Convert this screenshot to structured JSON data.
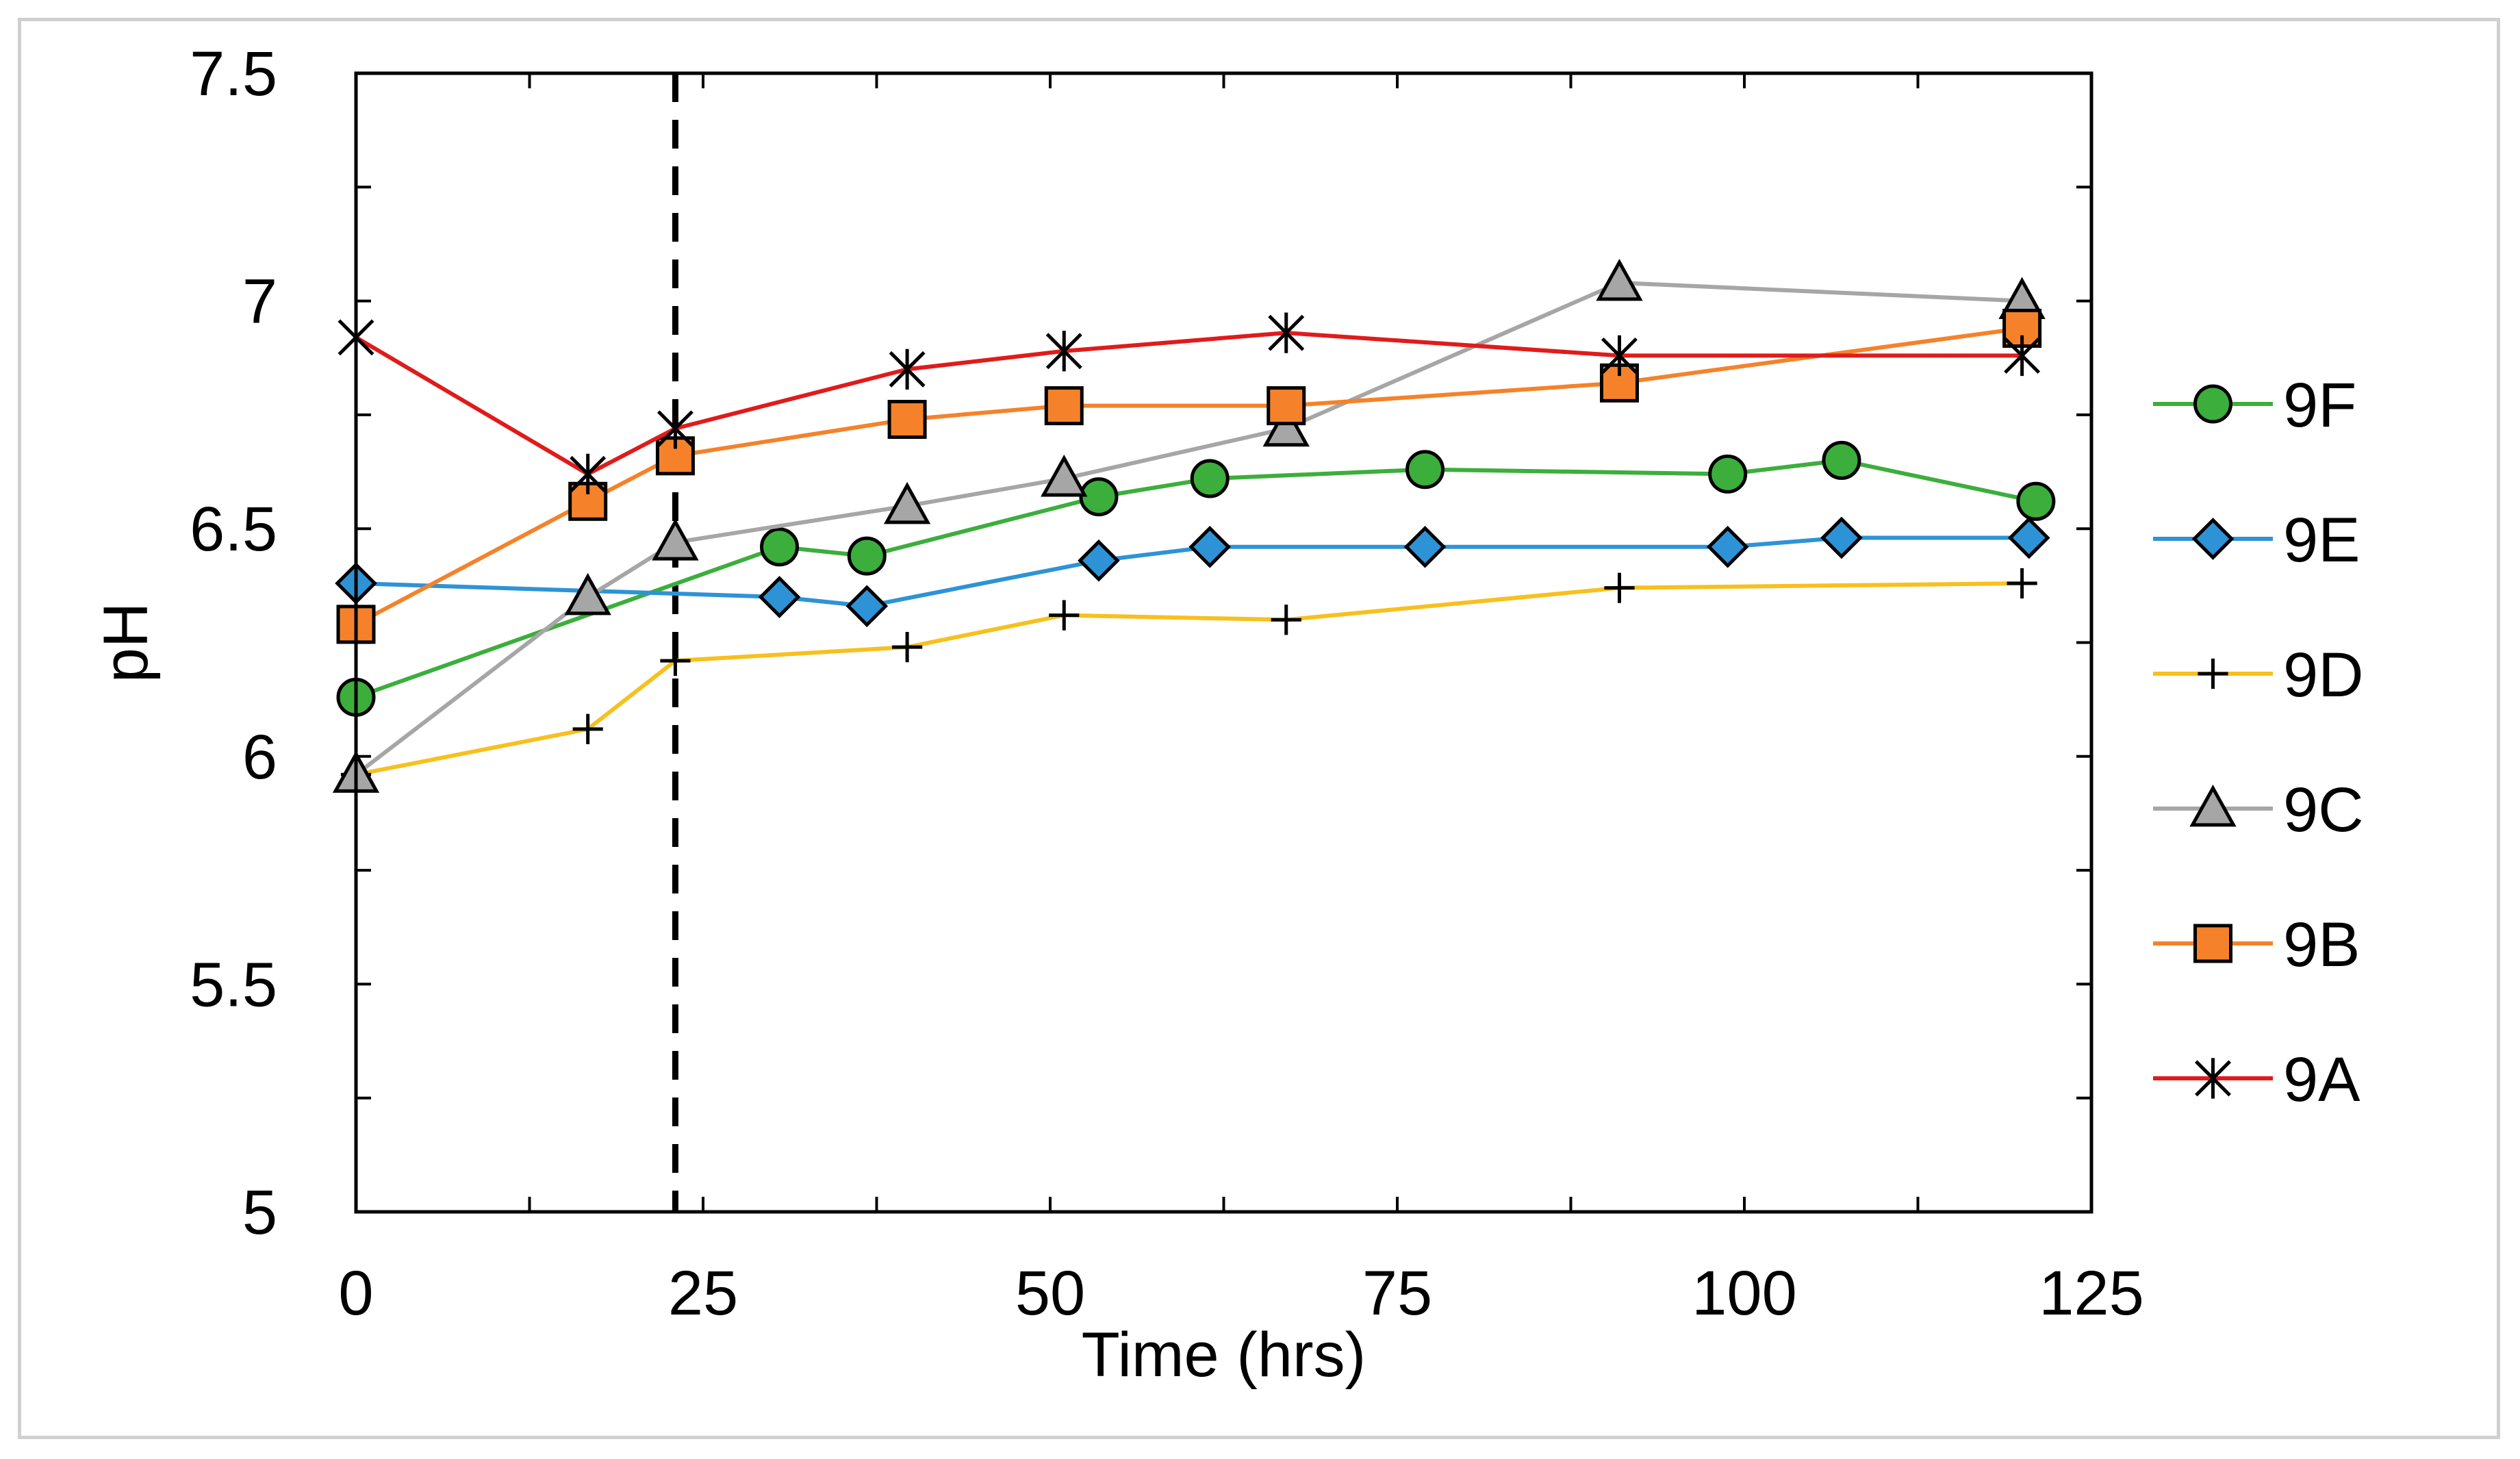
{
  "chart_data": {
    "type": "line",
    "title": "",
    "xlabel": "Time (hrs)",
    "ylabel": "pH",
    "xlim": [
      0,
      125
    ],
    "ylim": [
      5,
      7.5
    ],
    "xticks": [
      0,
      25,
      50,
      75,
      100,
      125
    ],
    "xtick_labels": [
      "0",
      "25",
      "50",
      "75",
      "100",
      "125"
    ],
    "yticks": [
      5,
      5.5,
      6,
      6.5,
      7,
      7.5
    ],
    "ytick_labels": [
      "5",
      "5.5",
      "6",
      "6.5",
      "7",
      "7.5"
    ],
    "vertical_reference_line": {
      "x": 23,
      "style": "dashed"
    },
    "legend_position": "right",
    "series": [
      {
        "name": "9F",
        "color": "#3cae3c",
        "marker": "circle",
        "x": [
          0,
          30.5,
          36.8,
          53.5,
          61.5,
          77,
          98.8,
          107,
          121
        ],
        "y": [
          6.13,
          6.46,
          6.44,
          6.57,
          6.61,
          6.63,
          6.62,
          6.65,
          6.56
        ]
      },
      {
        "name": "9E",
        "color": "#2e93d6",
        "marker": "diamond",
        "x": [
          0,
          30.5,
          36.8,
          53.5,
          61.5,
          77,
          98.8,
          107,
          120.5
        ],
        "y": [
          6.38,
          6.35,
          6.33,
          6.43,
          6.46,
          6.46,
          6.46,
          6.48,
          6.48
        ]
      },
      {
        "name": "9D",
        "color": "#f7c01e",
        "marker": "plus",
        "x": [
          0,
          16.7,
          23,
          39.7,
          51,
          67,
          91,
          120
        ],
        "y": [
          5.96,
          6.06,
          6.21,
          6.24,
          6.31,
          6.3,
          6.37,
          6.38
        ]
      },
      {
        "name": "9C",
        "color": "#a6a6a6",
        "marker": "triangle",
        "x": [
          0,
          16.7,
          23,
          39.7,
          51,
          67,
          91,
          120
        ],
        "y": [
          5.96,
          6.35,
          6.47,
          6.55,
          6.61,
          6.72,
          7.04,
          7.0
        ]
      },
      {
        "name": "9B",
        "color": "#f5822a",
        "marker": "square",
        "x": [
          0,
          16.7,
          23,
          39.7,
          51,
          67,
          91,
          120
        ],
        "y": [
          6.29,
          6.56,
          6.66,
          6.74,
          6.77,
          6.77,
          6.82,
          6.94
        ]
      },
      {
        "name": "9A",
        "color": "#e01b1b",
        "marker": "star",
        "x": [
          0,
          16.7,
          23,
          39.7,
          51,
          67,
          91,
          120
        ],
        "y": [
          6.92,
          6.62,
          6.72,
          6.85,
          6.89,
          6.93,
          6.88,
          6.88
        ]
      }
    ]
  }
}
